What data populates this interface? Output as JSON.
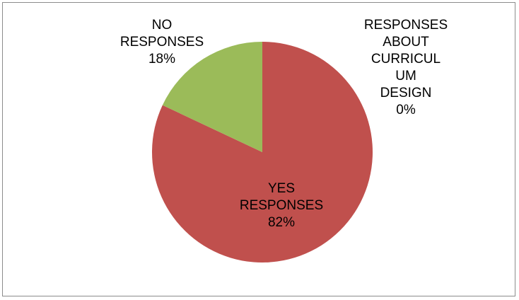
{
  "chart_data": {
    "type": "pie",
    "slices": [
      {
        "name_lines": [
          "YES",
          "RESPONSES"
        ],
        "value": 82,
        "percent_label": "82%",
        "color": "#C0504D"
      },
      {
        "name_lines": [
          "NO",
          "RESPONSES"
        ],
        "value": 18,
        "percent_label": "18%",
        "color": "#9BBB59"
      },
      {
        "name_lines": [
          "RESPONSES",
          "ABOUT",
          "CURRICUL",
          "UM",
          "DESIGN"
        ],
        "value": 0,
        "percent_label": "0%",
        "color": "#4F81BD"
      }
    ],
    "start": "12 o'clock, clockwise",
    "legend": "none"
  }
}
